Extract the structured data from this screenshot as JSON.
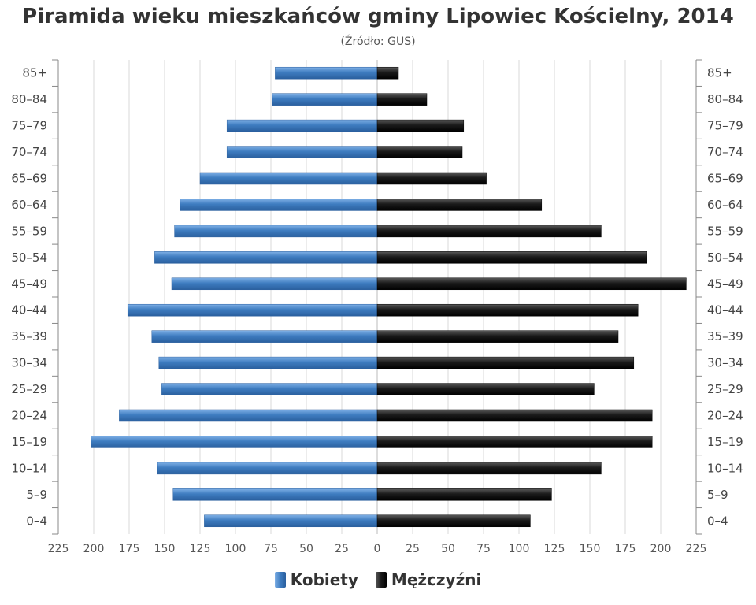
{
  "title": "Piramida wieku mieszkańców gminy Lipowiec Kościelny, 2014",
  "subtitle": "(Źródło: GUS)",
  "colors": {
    "women": "#3e7cc0",
    "men": "#1a1a1a",
    "grid": "#d9d9d9",
    "axis": "#888888"
  },
  "chart_data": {
    "type": "bar",
    "orientation": "horizontal-population-pyramid",
    "title": "Piramida wieku mieszkańców gminy Lipowiec Kościelny, 2014",
    "subtitle": "(Źródło: GUS)",
    "categories": [
      "85+",
      "80–84",
      "75–79",
      "70–74",
      "65–69",
      "60–64",
      "55–59",
      "50–54",
      "45–49",
      "40–44",
      "35–39",
      "30–34",
      "25–29",
      "20–24",
      "15–19",
      "10–14",
      "5–9",
      "0–4"
    ],
    "series": [
      {
        "name": "Kobiety",
        "values": [
          72,
          74,
          106,
          106,
          125,
          139,
          143,
          157,
          145,
          176,
          159,
          154,
          152,
          182,
          202,
          155,
          144,
          122
        ]
      },
      {
        "name": "Mężczyźni",
        "values": [
          15,
          35,
          61,
          60,
          77,
          116,
          158,
          190,
          218,
          184,
          170,
          181,
          153,
          194,
          194,
          158,
          123,
          108
        ]
      }
    ],
    "xlim": [
      -225,
      225
    ],
    "x_ticks": [
      "225",
      "200",
      "175",
      "150",
      "125",
      "100",
      "75",
      "50",
      "25",
      "0",
      "25",
      "50",
      "75",
      "100",
      "125",
      "150",
      "175",
      "200",
      "225"
    ],
    "grid": true,
    "legend": "bottom-center"
  },
  "legend": {
    "women_label": "Kobiety",
    "men_label": "Mężczyźni"
  }
}
